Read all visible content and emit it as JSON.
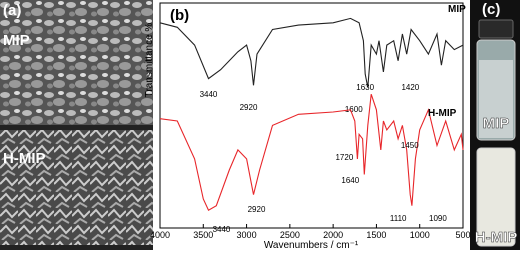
{
  "panels": {
    "a": {
      "label": "(a)",
      "top": "MIP",
      "bottom": "H-MIP"
    },
    "c": {
      "label": "(c)",
      "top": "MIP",
      "bottom": "H-MIP"
    }
  },
  "chart_data": {
    "type": "line",
    "label": "(b)",
    "xlabel": "Wavenumbers / cm⁻¹",
    "ylabel": "Transmittance %",
    "xlim": [
      4000,
      500
    ],
    "ylim": [
      0,
      100
    ],
    "xticks": [
      4000,
      3500,
      3000,
      2500,
      2000,
      1500,
      1000,
      500
    ],
    "series": [
      {
        "name": "MIP",
        "color": "#222222",
        "x": [
          4000,
          3800,
          3600,
          3440,
          3300,
          3100,
          3000,
          2950,
          2920,
          2880,
          2700,
          2400,
          2000,
          1800,
          1700,
          1650,
          1630,
          1600,
          1560,
          1500,
          1470,
          1420,
          1380,
          1300,
          1250,
          1200,
          1150,
          1100,
          1000,
          900,
          800,
          750,
          700,
          600,
          500
        ],
        "values": [
          92,
          90,
          82,
          67,
          71,
          79,
          82,
          75,
          64,
          78,
          89,
          91,
          92,
          94,
          92,
          84,
          69,
          63,
          82,
          78,
          84,
          70,
          82,
          84,
          75,
          87,
          78,
          89,
          84,
          78,
          87,
          73,
          84,
          80,
          82
        ],
        "peaks": [
          3440,
          2920,
          1630,
          1600,
          1420
        ]
      },
      {
        "name": "H-MIP",
        "color": "#e8262a",
        "x": [
          4000,
          3800,
          3600,
          3500,
          3440,
          3350,
          3200,
          3100,
          3000,
          2920,
          2850,
          2700,
          2400,
          2000,
          1800,
          1750,
          1720,
          1700,
          1660,
          1640,
          1600,
          1560,
          1500,
          1450,
          1420,
          1380,
          1300,
          1250,
          1200,
          1150,
          1110,
          1090,
          1050,
          1000,
          900,
          800,
          700,
          600,
          520,
          500
        ],
        "values": [
          49,
          48,
          31,
          13,
          8,
          10,
          26,
          35,
          31,
          15,
          26,
          46,
          51,
          52,
          53,
          48,
          31,
          42,
          40,
          24,
          46,
          60,
          53,
          35,
          48,
          44,
          48,
          40,
          46,
          35,
          15,
          10,
          31,
          44,
          53,
          37,
          48,
          35,
          42,
          35
        ],
        "peaks": [
          3440,
          2920,
          1720,
          1640,
          1450,
          1110,
          1090
        ]
      }
    ]
  }
}
